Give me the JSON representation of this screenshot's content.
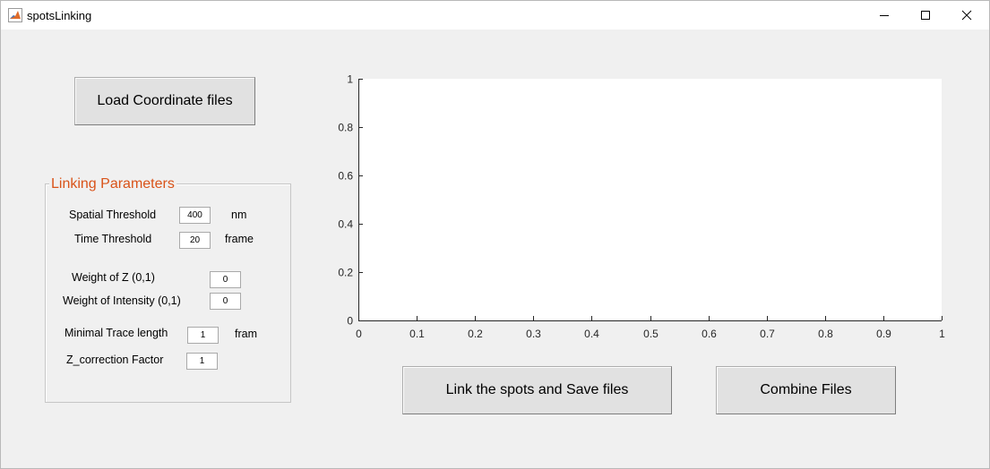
{
  "window": {
    "title": "spotsLinking"
  },
  "buttons": {
    "load": "Load Coordinate files",
    "link": "Link the spots and Save files",
    "combine": "Combine Files"
  },
  "params": {
    "title": "Linking Parameters",
    "spatial": {
      "label": "Spatial Threshold",
      "value": "400",
      "unit": "nm"
    },
    "time": {
      "label": "Time Threshold",
      "value": "20",
      "unit": "frame"
    },
    "weight_z": {
      "label": "Weight of Z (0,1)",
      "value": "0"
    },
    "weight_intensity": {
      "label": "Weight of Intensity (0,1)",
      "value": "0"
    },
    "min_trace": {
      "label": "Minimal Trace length",
      "value": "1",
      "unit": "fram"
    },
    "z_correction": {
      "label": "Z_correction Factor",
      "value": "1"
    }
  },
  "chart_data": {
    "type": "line",
    "series": [],
    "xlim": [
      0,
      1
    ],
    "ylim": [
      0,
      1
    ],
    "xticks": [
      "0",
      "0.1",
      "0.2",
      "0.3",
      "0.4",
      "0.5",
      "0.6",
      "0.7",
      "0.8",
      "0.9",
      "1"
    ],
    "yticks": [
      "0",
      "0.2",
      "0.4",
      "0.6",
      "0.8",
      "1"
    ],
    "title": "",
    "xlabel": "",
    "ylabel": "",
    "grid": false
  }
}
